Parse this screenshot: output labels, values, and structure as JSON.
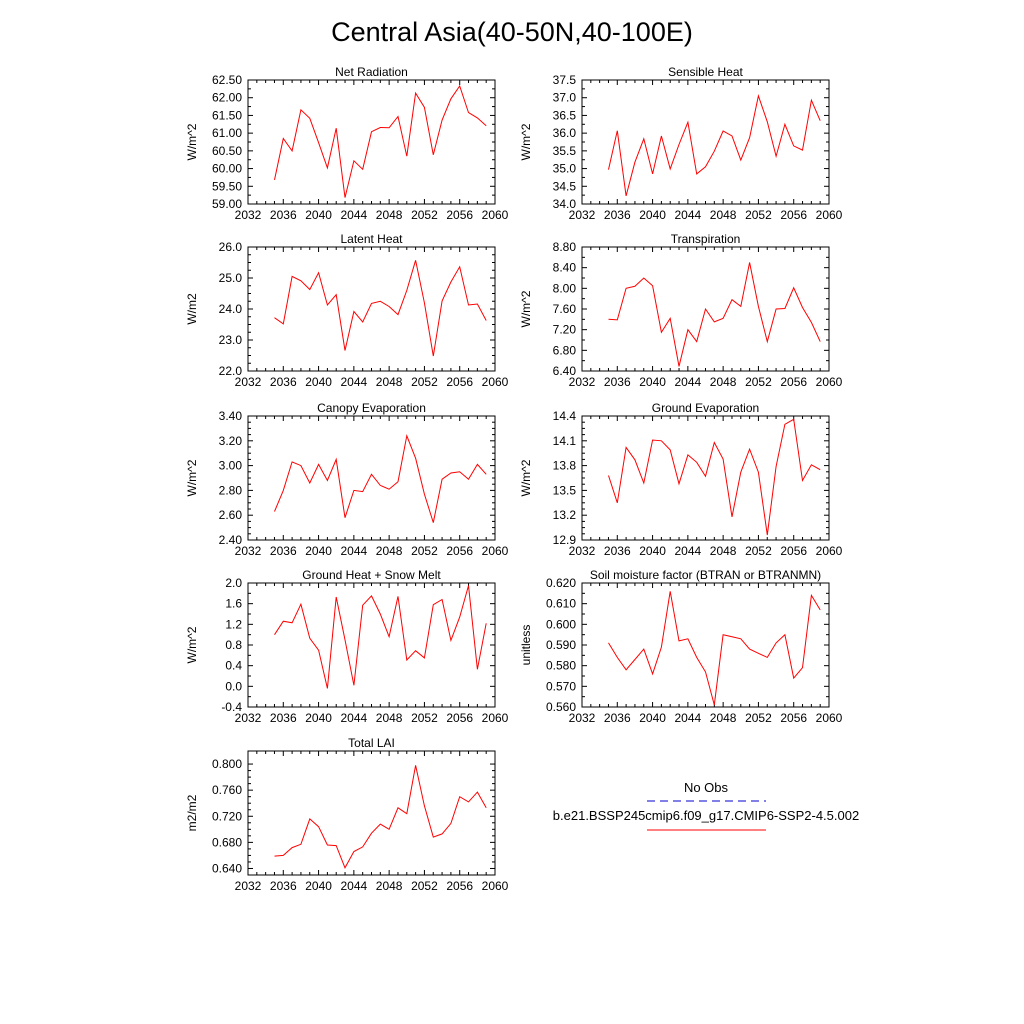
{
  "title": "Central Asia(40-50N,40-100E)",
  "legend": {
    "obs_label": "No Obs",
    "model_label": "b.e21.BSSP245cmip6.f09_g17.CMIP6-SSP2-4.5.002",
    "obs_color": "#0000cc",
    "model_color": "#ff0000"
  },
  "chart_data": [
    {
      "type": "line",
      "title": "Net Radiation",
      "xlabel": "",
      "ylabel": "W/m^2",
      "xlim": [
        2032,
        2060
      ],
      "ylim": [
        59.0,
        62.5
      ],
      "xticks": [
        2032,
        2036,
        2040,
        2044,
        2048,
        2052,
        2056,
        2060
      ],
      "yticks": [
        "59.00",
        "59.50",
        "60.00",
        "60.50",
        "61.00",
        "61.50",
        "62.00",
        "62.50"
      ],
      "x": [
        2035,
        2036,
        2037,
        2038,
        2039,
        2040,
        2041,
        2042,
        2043,
        2044,
        2045,
        2046,
        2047,
        2048,
        2049,
        2050,
        2051,
        2052,
        2053,
        2054,
        2055,
        2056,
        2057,
        2058,
        2059
      ],
      "series": [
        {
          "name": "b.e21.BSSP245cmip6.f09_g17.CMIP6-SSP2-4.5.002",
          "color": "#ff0000",
          "values": [
            59.68,
            60.85,
            60.5,
            61.66,
            61.42,
            60.73,
            60.02,
            61.14,
            59.18,
            60.22,
            59.98,
            61.04,
            61.16,
            61.15,
            61.47,
            60.35,
            62.13,
            61.73,
            60.39,
            61.37,
            61.97,
            62.33,
            61.58,
            61.43,
            61.21
          ]
        }
      ]
    },
    {
      "type": "line",
      "title": "Sensible Heat",
      "xlabel": "",
      "ylabel": "W/m^2",
      "xlim": [
        2032,
        2060
      ],
      "ylim": [
        34.0,
        37.5
      ],
      "xticks": [
        2032,
        2036,
        2040,
        2044,
        2048,
        2052,
        2056,
        2060
      ],
      "yticks": [
        "34.0",
        "34.5",
        "35.0",
        "35.5",
        "36.0",
        "36.5",
        "37.0",
        "37.5"
      ],
      "x": [
        2035,
        2036,
        2037,
        2038,
        2039,
        2040,
        2041,
        2042,
        2043,
        2044,
        2045,
        2046,
        2047,
        2048,
        2049,
        2050,
        2051,
        2052,
        2053,
        2054,
        2055,
        2056,
        2057,
        2058,
        2059
      ],
      "series": [
        {
          "name": "b.e21.BSSP245cmip6.f09_g17.CMIP6-SSP2-4.5.002",
          "color": "#ff0000",
          "values": [
            34.97,
            36.07,
            34.23,
            35.18,
            35.84,
            34.85,
            35.92,
            34.99,
            35.68,
            36.31,
            34.85,
            35.05,
            35.49,
            36.06,
            35.92,
            35.24,
            35.87,
            37.05,
            36.32,
            35.35,
            36.25,
            35.64,
            35.52,
            36.93,
            36.35
          ]
        }
      ]
    },
    {
      "type": "line",
      "title": "Latent Heat",
      "xlabel": "",
      "ylabel": "W/m2",
      "xlim": [
        2032,
        2060
      ],
      "ylim": [
        22.0,
        26.0
      ],
      "xticks": [
        2032,
        2036,
        2040,
        2044,
        2048,
        2052,
        2056,
        2060
      ],
      "yticks": [
        "22.0",
        "23.0",
        "24.0",
        "25.0",
        "26.0"
      ],
      "x": [
        2035,
        2036,
        2037,
        2038,
        2039,
        2040,
        2041,
        2042,
        2043,
        2044,
        2045,
        2046,
        2047,
        2048,
        2049,
        2050,
        2051,
        2052,
        2053,
        2054,
        2055,
        2056,
        2057,
        2058,
        2059
      ],
      "series": [
        {
          "name": "b.e21.BSSP245cmip6.f09_g17.CMIP6-SSP2-4.5.002",
          "color": "#ff0000",
          "values": [
            23.72,
            23.52,
            25.05,
            24.91,
            24.63,
            25.17,
            24.13,
            24.46,
            22.66,
            23.92,
            23.58,
            24.18,
            24.25,
            24.08,
            23.82,
            24.6,
            25.57,
            24.2,
            22.48,
            24.26,
            24.87,
            25.36,
            24.13,
            24.16,
            23.63
          ]
        }
      ]
    },
    {
      "type": "line",
      "title": "Transpiration",
      "xlabel": "",
      "ylabel": "W/m^2",
      "xlim": [
        2032,
        2060
      ],
      "ylim": [
        6.4,
        8.8
      ],
      "xticks": [
        2032,
        2036,
        2040,
        2044,
        2048,
        2052,
        2056,
        2060
      ],
      "yticks": [
        "6.40",
        "6.80",
        "7.20",
        "7.60",
        "8.00",
        "8.40",
        "8.80"
      ],
      "x": [
        2035,
        2036,
        2037,
        2038,
        2039,
        2040,
        2041,
        2042,
        2043,
        2044,
        2045,
        2046,
        2047,
        2048,
        2049,
        2050,
        2051,
        2052,
        2053,
        2054,
        2055,
        2056,
        2057,
        2058,
        2059
      ],
      "series": [
        {
          "name": "b.e21.BSSP245cmip6.f09_g17.CMIP6-SSP2-4.5.002",
          "color": "#ff0000",
          "values": [
            7.4,
            7.39,
            8.0,
            8.04,
            8.2,
            8.05,
            7.15,
            7.42,
            6.49,
            7.2,
            6.97,
            7.6,
            7.35,
            7.42,
            7.78,
            7.65,
            8.5,
            7.65,
            6.97,
            7.6,
            7.61,
            8.01,
            7.63,
            7.34,
            6.97
          ]
        }
      ]
    },
    {
      "type": "line",
      "title": "Canopy Evaporation",
      "xlabel": "",
      "ylabel": "W/m^2",
      "xlim": [
        2032,
        2060
      ],
      "ylim": [
        2.4,
        3.4
      ],
      "xticks": [
        2032,
        2036,
        2040,
        2044,
        2048,
        2052,
        2056,
        2060
      ],
      "yticks": [
        "2.40",
        "2.60",
        "2.80",
        "3.00",
        "3.20",
        "3.40"
      ],
      "x": [
        2035,
        2036,
        2037,
        2038,
        2039,
        2040,
        2041,
        2042,
        2043,
        2044,
        2045,
        2046,
        2047,
        2048,
        2049,
        2050,
        2051,
        2052,
        2053,
        2054,
        2055,
        2056,
        2057,
        2058,
        2059
      ],
      "series": [
        {
          "name": "b.e21.BSSP245cmip6.f09_g17.CMIP6-SSP2-4.5.002",
          "color": "#ff0000",
          "values": [
            2.63,
            2.8,
            3.03,
            3.0,
            2.86,
            3.01,
            2.88,
            3.05,
            2.58,
            2.8,
            2.79,
            2.93,
            2.84,
            2.81,
            2.87,
            3.24,
            3.06,
            2.77,
            2.54,
            2.89,
            2.94,
            2.95,
            2.89,
            3.01,
            2.93
          ]
        }
      ]
    },
    {
      "type": "line",
      "title": "Ground Evaporation",
      "xlabel": "",
      "ylabel": "W/m^2",
      "xlim": [
        2032,
        2060
      ],
      "ylim": [
        12.9,
        14.4
      ],
      "xticks": [
        2032,
        2036,
        2040,
        2044,
        2048,
        2052,
        2056,
        2060
      ],
      "yticks": [
        "12.9",
        "13.2",
        "13.5",
        "13.8",
        "14.1",
        "14.4"
      ],
      "x": [
        2035,
        2036,
        2037,
        2038,
        2039,
        2040,
        2041,
        2042,
        2043,
        2044,
        2045,
        2046,
        2047,
        2048,
        2049,
        2050,
        2051,
        2052,
        2053,
        2054,
        2055,
        2056,
        2057,
        2058,
        2059
      ],
      "series": [
        {
          "name": "b.e21.BSSP245cmip6.f09_g17.CMIP6-SSP2-4.5.002",
          "color": "#ff0000",
          "values": [
            13.68,
            13.35,
            14.02,
            13.87,
            13.59,
            14.11,
            14.1,
            13.99,
            13.58,
            13.93,
            13.84,
            13.67,
            14.08,
            13.88,
            13.18,
            13.72,
            14.0,
            13.72,
            12.96,
            13.79,
            14.3,
            14.36,
            13.62,
            13.81,
            13.75
          ]
        }
      ]
    },
    {
      "type": "line",
      "title": "Ground Heat + Snow Melt",
      "xlabel": "",
      "ylabel": "W/m^2",
      "xlim": [
        2032,
        2060
      ],
      "ylim": [
        -0.4,
        2.0
      ],
      "xticks": [
        2032,
        2036,
        2040,
        2044,
        2048,
        2052,
        2056,
        2060
      ],
      "yticks": [
        "-0.4",
        "0.0",
        "0.4",
        "0.8",
        "1.2",
        "1.6",
        "2.0"
      ],
      "x": [
        2035,
        2036,
        2037,
        2038,
        2039,
        2040,
        2041,
        2042,
        2043,
        2044,
        2045,
        2046,
        2047,
        2048,
        2049,
        2050,
        2051,
        2052,
        2053,
        2054,
        2055,
        2056,
        2057,
        2058,
        2059
      ],
      "series": [
        {
          "name": "b.e21.BSSP245cmip6.f09_g17.CMIP6-SSP2-4.5.002",
          "color": "#ff0000",
          "values": [
            1.0,
            1.26,
            1.23,
            1.59,
            0.93,
            0.7,
            -0.04,
            1.73,
            0.9,
            0.02,
            1.57,
            1.75,
            1.4,
            0.96,
            1.74,
            0.51,
            0.69,
            0.55,
            1.58,
            1.68,
            0.89,
            1.34,
            1.95,
            0.33,
            1.22
          ]
        }
      ]
    },
    {
      "type": "line",
      "title": "Soil moisture factor (BTRAN or BTRANMN)",
      "xlabel": "",
      "ylabel": "unitless",
      "xlim": [
        2032,
        2060
      ],
      "ylim": [
        0.56,
        0.62
      ],
      "xticks": [
        2032,
        2036,
        2040,
        2044,
        2048,
        2052,
        2056,
        2060
      ],
      "yticks": [
        "0.560",
        "0.570",
        "0.580",
        "0.590",
        "0.600",
        "0.610",
        "0.620"
      ],
      "x": [
        2035,
        2036,
        2037,
        2038,
        2039,
        2040,
        2041,
        2042,
        2043,
        2044,
        2045,
        2046,
        2047,
        2048,
        2049,
        2050,
        2051,
        2052,
        2053,
        2054,
        2055,
        2056,
        2057,
        2058,
        2059
      ],
      "series": [
        {
          "name": "b.e21.BSSP245cmip6.f09_g17.CMIP6-SSP2-4.5.002",
          "color": "#ff0000",
          "values": [
            0.591,
            0.584,
            0.578,
            0.583,
            0.588,
            0.576,
            0.589,
            0.616,
            0.592,
            0.593,
            0.584,
            0.577,
            0.561,
            0.595,
            0.594,
            0.593,
            0.588,
            0.586,
            0.584,
            0.591,
            0.595,
            0.574,
            0.579,
            0.614,
            0.607
          ]
        }
      ]
    },
    {
      "type": "line",
      "title": "Total LAI",
      "xlabel": "",
      "ylabel": "m2/m2",
      "xlim": [
        2032,
        2060
      ],
      "ylim": [
        0.63,
        0.82
      ],
      "xticks": [
        2032,
        2036,
        2040,
        2044,
        2048,
        2052,
        2056,
        2060
      ],
      "yticks": [
        "0.640",
        "0.680",
        "0.720",
        "0.760",
        "0.800"
      ],
      "x": [
        2035,
        2036,
        2037,
        2038,
        2039,
        2040,
        2041,
        2042,
        2043,
        2044,
        2045,
        2046,
        2047,
        2048,
        2049,
        2050,
        2051,
        2052,
        2053,
        2054,
        2055,
        2056,
        2057,
        2058,
        2059
      ],
      "series": [
        {
          "name": "b.e21.BSSP245cmip6.f09_g17.CMIP6-SSP2-4.5.002",
          "color": "#ff0000",
          "values": [
            0.659,
            0.66,
            0.672,
            0.677,
            0.716,
            0.704,
            0.676,
            0.675,
            0.641,
            0.666,
            0.673,
            0.694,
            0.708,
            0.7,
            0.733,
            0.724,
            0.798,
            0.736,
            0.688,
            0.693,
            0.709,
            0.75,
            0.742,
            0.757,
            0.733
          ]
        }
      ]
    }
  ]
}
